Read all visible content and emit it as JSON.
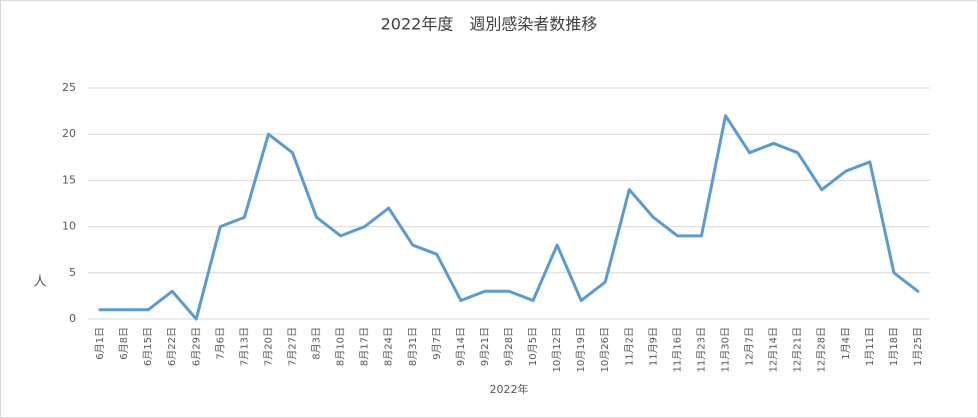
{
  "chart_data": {
    "type": "line",
    "title": "2022年度　週別感染者数推移",
    "x_label": "2022年",
    "y_label": "人",
    "categories": [
      "6月1日",
      "6月8日",
      "6月15日",
      "6月22日",
      "6月29日",
      "7月6日",
      "7月13日",
      "7月20日",
      "7月27日",
      "8月3日",
      "8月10日",
      "8月17日",
      "8月24日",
      "8月31日",
      "9月7日",
      "9月14日",
      "9月21日",
      "9月28日",
      "10月5日",
      "10月12日",
      "10月19日",
      "10月26日",
      "11月2日",
      "11月9日",
      "11月16日",
      "11月23日",
      "11月30日",
      "12月7日",
      "12月14日",
      "12月21日",
      "12月28日",
      "1月4日",
      "1月11日",
      "1月18日",
      "1月25日"
    ],
    "values": [
      1,
      1,
      1,
      3,
      0,
      10,
      11,
      20,
      18,
      11,
      9,
      10,
      12,
      8,
      7,
      2,
      3,
      3,
      2,
      8,
      2,
      4,
      14,
      11,
      9,
      9,
      22,
      18,
      19,
      18,
      14,
      16,
      17,
      5,
      3
    ],
    "color": "#5b9bd5",
    "ylim": [
      0,
      25
    ],
    "yticks": [
      0,
      5,
      10,
      15,
      20,
      25
    ],
    "grid": true
  }
}
